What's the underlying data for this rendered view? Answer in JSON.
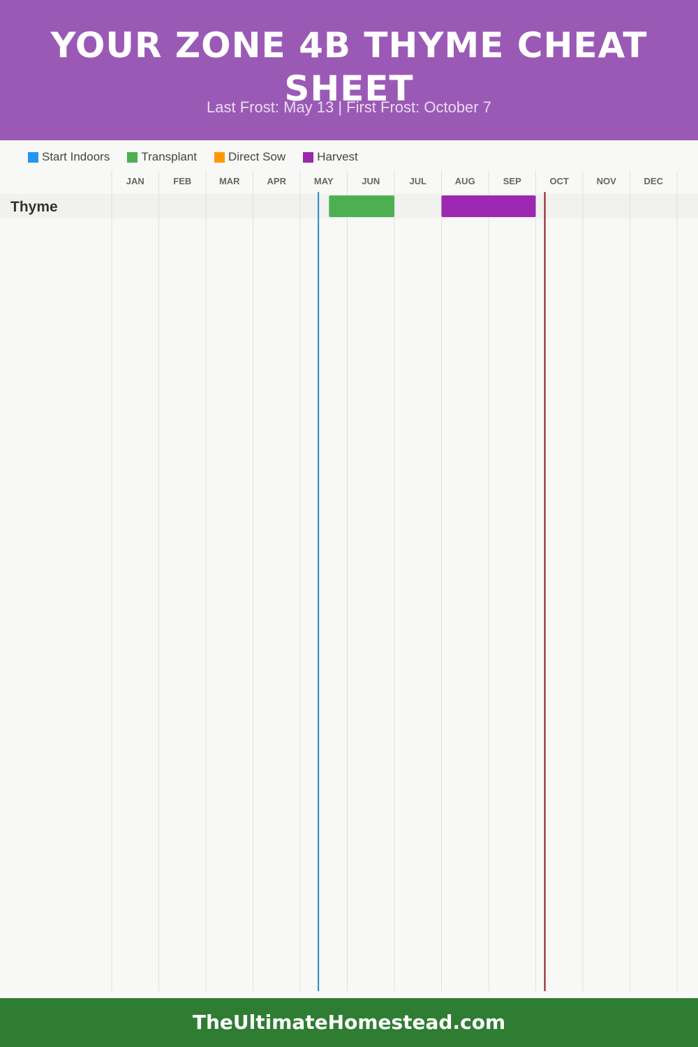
{
  "header": {
    "title": "YOUR ZONE 4B THYME CHEAT SHEET",
    "subtitle": "Last Frost: May 13 | First Frost: October 7",
    "background": "#9b59b6"
  },
  "legend": [
    {
      "label": "Start Indoors",
      "color": "#2196f3"
    },
    {
      "label": "Transplant",
      "color": "#4caf50"
    },
    {
      "label": "Direct Sow",
      "color": "#ff9800"
    },
    {
      "label": "Harvest",
      "color": "#9c27b0"
    }
  ],
  "chart_data": {
    "type": "gantt",
    "months": [
      "JAN",
      "FEB",
      "MAR",
      "APR",
      "MAY",
      "JUN",
      "JUL",
      "AUG",
      "SEP",
      "OCT",
      "NOV",
      "DEC"
    ],
    "rows": [
      {
        "label": "Thyme",
        "bars": [
          {
            "phase": "Transplant",
            "start": "May 20",
            "end": "Jun 30",
            "color": "#4caf50"
          },
          {
            "phase": "Harvest",
            "start": "Aug 1",
            "end": "Sep 30",
            "color": "#9c27b0"
          }
        ]
      }
    ],
    "markers": [
      {
        "name": "Last Frost",
        "date": "May 13",
        "color": "#2a86c8"
      },
      {
        "name": "First Frost",
        "date": "Oct 7",
        "color": "#8b1a1a"
      }
    ],
    "grid": true
  },
  "footer": {
    "text": "TheUltimateHomestead.com",
    "background": "#2e7d32"
  }
}
